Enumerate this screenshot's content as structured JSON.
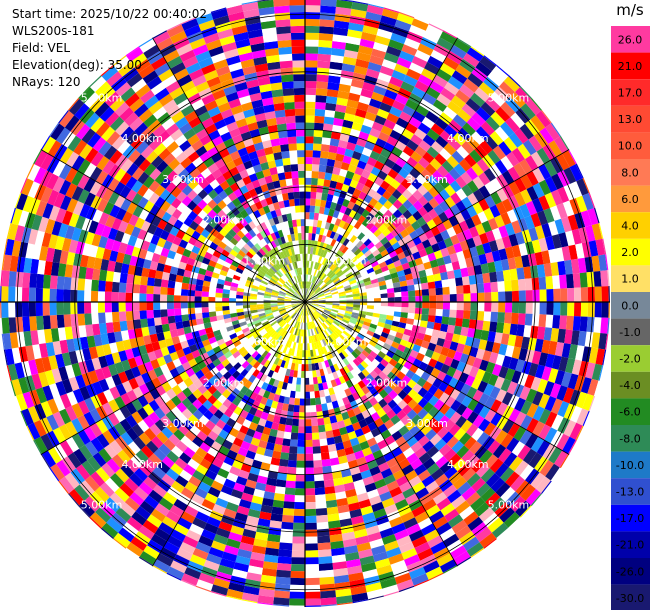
{
  "header": {
    "start_time": "Start time: 2025/10/22 00:40:02",
    "instrument": "WLS200s-181",
    "field": "Field: VEL",
    "elevation": "Elevation(deg): 35.00",
    "nrays": "NRays: 120"
  },
  "chart_data": {
    "type": "heatmap",
    "projection": "polar",
    "field": "VEL",
    "units": "m/s",
    "n_rays": 120,
    "elevation_deg": 35.0,
    "range_rings": [
      {
        "label": "1.00km",
        "range_km": 1.0
      },
      {
        "label": "2.00km",
        "range_km": 2.0
      },
      {
        "label": "3.00km",
        "range_km": 3.0
      },
      {
        "label": "4.00km",
        "range_km": 4.0
      },
      {
        "label": "5.00km",
        "range_km": 5.0
      }
    ],
    "max_range_km": 5.3,
    "colorbar": {
      "label": "m/s",
      "ticks": [
        "26.0",
        "21.0",
        "17.0",
        "13.0",
        "10.0",
        "8.0",
        "6.0",
        "4.0",
        "2.0",
        "1.0",
        "0.0",
        "-1.0",
        "-2.0",
        "-4.0",
        "-6.0",
        "-8.0",
        "-10.0",
        "-13.0",
        "-17.0",
        "-21.0",
        "-26.0",
        "-30.0"
      ],
      "colors": [
        "#ff3aa0",
        "#ff0000",
        "#ff2a2a",
        "#ff4a33",
        "#ff5c3c",
        "#ff7a55",
        "#ff9a3c",
        "#ffd000",
        "#ffff00",
        "#ffe066",
        "#778899",
        "#666666",
        "#9acd32",
        "#6b8e23",
        "#228b22",
        "#2e8b57",
        "#1e7ac8",
        "#3050d0",
        "#0000ff",
        "#0000aa",
        "#000080",
        "#191970"
      ]
    },
    "palette_far": [
      "#ff1493",
      "#ff69b4",
      "#ff3aa0",
      "#0000cd",
      "#0000ff",
      "#191970",
      "#000080",
      "#ffff00",
      "#ffd700",
      "#ff8c00",
      "#ff4500",
      "#ff0000",
      "#228b22",
      "#2e8b57",
      "#1e90ff",
      "#ffffff",
      "#ff00ff",
      "#ff6347",
      "#ffb6c1",
      "#4169e1"
    ],
    "palette_near": [
      "#ffff00",
      "#ffee00",
      "#9acd32",
      "#6b8e23",
      "#778899",
      "#a9a9a9",
      "#ffd700",
      "#90ee90",
      "#ffffff"
    ]
  }
}
